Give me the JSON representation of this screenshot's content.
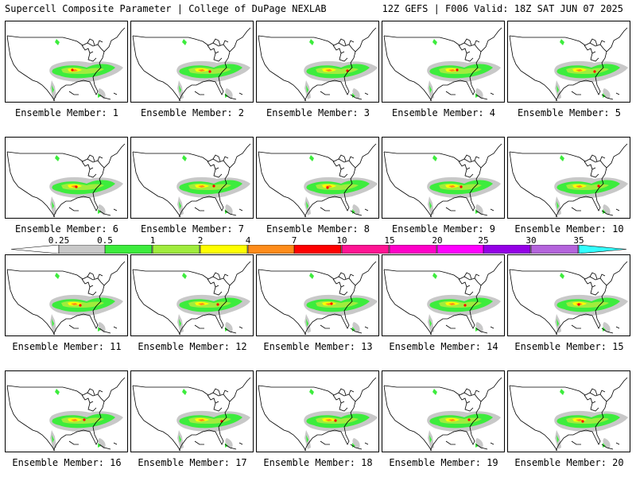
{
  "header": {
    "left": "Supercell Composite Parameter | College of DuPage NEXLAB",
    "right": "12Z GEFS | F006 Valid: 18Z SAT JUN 07 2025"
  },
  "colorbar": {
    "ticks": [
      "0.25",
      "0.5",
      "1",
      "2",
      "4",
      "7",
      "10",
      "15",
      "20",
      "25",
      "30",
      "35"
    ],
    "colors": [
      "#c8c8c8",
      "#3dec3d",
      "#a0ec3d",
      "#ffff00",
      "#ff8c1a",
      "#ff0000",
      "#ff1493",
      "#ff00c8",
      "#ff00ff",
      "#9400e6",
      "#b464dc",
      "#33ffff"
    ]
  },
  "panels": [
    {
      "label": "Ensemble Member: 1"
    },
    {
      "label": "Ensemble Member: 2"
    },
    {
      "label": "Ensemble Member: 3"
    },
    {
      "label": "Ensemble Member: 4"
    },
    {
      "label": "Ensemble Member: 5"
    },
    {
      "label": "Ensemble Member: 6"
    },
    {
      "label": "Ensemble Member: 7"
    },
    {
      "label": "Ensemble Member: 8"
    },
    {
      "label": "Ensemble Member: 9"
    },
    {
      "label": "Ensemble Member: 10"
    },
    {
      "label": "Ensemble Member: 11"
    },
    {
      "label": "Ensemble Member: 12"
    },
    {
      "label": "Ensemble Member: 13"
    },
    {
      "label": "Ensemble Member: 14"
    },
    {
      "label": "Ensemble Member: 15"
    },
    {
      "label": "Ensemble Member: 16"
    },
    {
      "label": "Ensemble Member: 17"
    },
    {
      "label": "Ensemble Member: 18"
    },
    {
      "label": "Ensemble Member: 19"
    },
    {
      "label": "Ensemble Member: 20"
    }
  ]
}
